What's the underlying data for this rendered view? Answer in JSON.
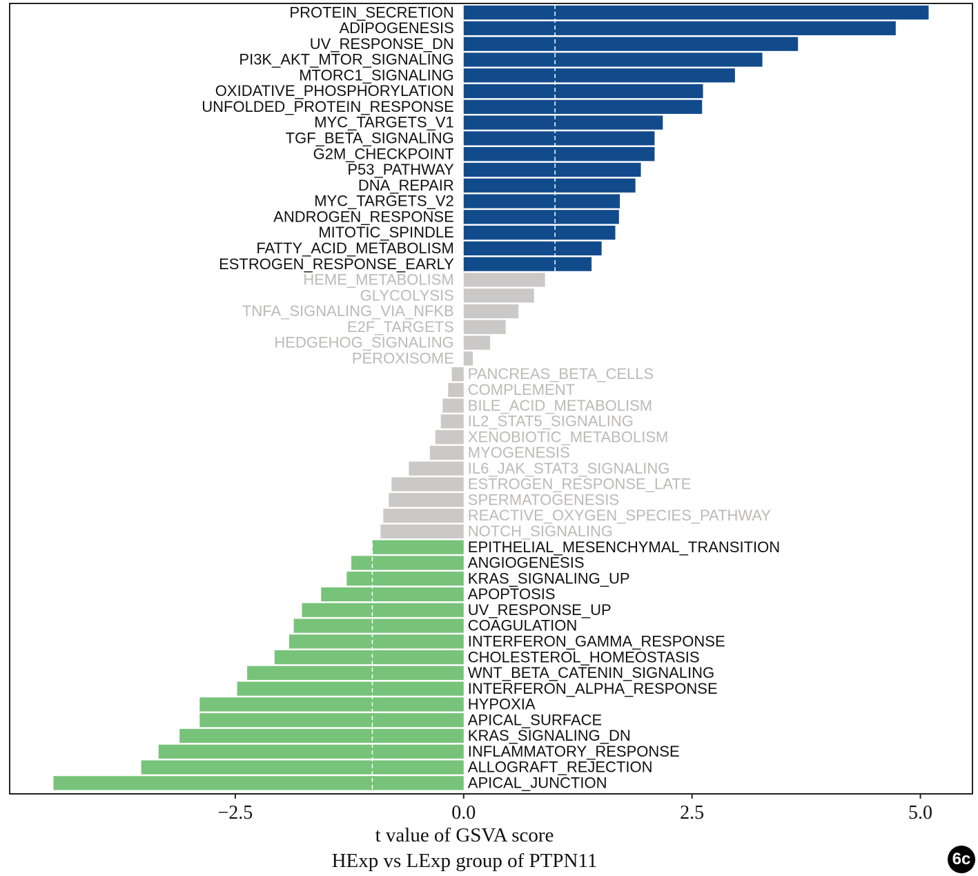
{
  "chart_data": {
    "type": "bar",
    "orientation": "horizontal",
    "xlabel": "t value of GSVA score",
    "subtitle": "HExp vs LExp group of PTPN11",
    "xlim": [
      -4.97,
      5.57
    ],
    "xticks": [
      -2.5,
      0.0,
      2.5,
      5.0
    ],
    "xtick_labels": [
      "−2.5",
      "0.0",
      "2.5",
      "5.0"
    ],
    "threshold_lines": [
      -1.0,
      1.0
    ],
    "grid": false,
    "colors": {
      "up": "#124b8c",
      "down": "#77c37a",
      "ns": "#cbc8c8",
      "ns_text": "#bdb9b9",
      "sig_text": "#111111"
    },
    "categories": [
      "PROTEIN_SECRETION",
      "ADIPOGENESIS",
      "UV_RESPONSE_DN",
      "PI3K_AKT_MTOR_SIGNALING",
      "MTORC1_SIGNALING",
      "OXIDATIVE_PHOSPHORYLATION",
      "UNFOLDED_PROTEIN_RESPONSE",
      "MYC_TARGETS_V1",
      "TGF_BETA_SIGNALING",
      "G2M_CHECKPOINT",
      "P53_PATHWAY",
      "DNA_REPAIR",
      "MYC_TARGETS_V2",
      "ANDROGEN_RESPONSE",
      "MITOTIC_SPINDLE",
      "FATTY_ACID_METABOLISM",
      "ESTROGEN_RESPONSE_EARLY",
      "HEME_METABOLISM",
      "GLYCOLYSIS",
      "TNFA_SIGNALING_VIA_NFKB",
      "E2F_TARGETS",
      "HEDGEHOG_SIGNALING",
      "PEROXISOME",
      "PANCREAS_BETA_CELLS",
      "COMPLEMENT",
      "BILE_ACID_METABOLISM",
      "IL2_STAT5_SIGNALING",
      "XENOBIOTIC_METABOLISM",
      "MYOGENESIS",
      "IL6_JAK_STAT3_SIGNALING",
      "ESTROGEN_RESPONSE_LATE",
      "SPERMATOGENESIS",
      "REACTIVE_OXYGEN_SPECIES_PATHWAY",
      "NOTCH_SIGNALING",
      "EPITHELIAL_MESENCHYMAL_TRANSITION",
      "ANGIOGENESIS",
      "KRAS_SIGNALING_UP",
      "APOPTOSIS",
      "UV_RESPONSE_UP",
      "COAGULATION",
      "INTERFERON_GAMMA_RESPONSE",
      "CHOLESTEROL_HOMEOSTASIS",
      "WNT_BETA_CATENIN_SIGNALING",
      "INTERFERON_ALPHA_RESPONSE",
      "HYPOXIA",
      "APICAL_SURFACE",
      "KRAS_SIGNALING_DN",
      "INFLAMMATORY_RESPONSE",
      "ALLOGRAFT_REJECTION",
      "APICAL_JUNCTION"
    ],
    "values": [
      5.09,
      4.73,
      3.66,
      3.27,
      2.97,
      2.62,
      2.61,
      2.18,
      2.09,
      2.09,
      1.94,
      1.88,
      1.71,
      1.7,
      1.66,
      1.51,
      1.4,
      0.89,
      0.77,
      0.6,
      0.46,
      0.29,
      0.1,
      -0.13,
      -0.17,
      -0.23,
      -0.25,
      -0.31,
      -0.37,
      -0.6,
      -0.79,
      -0.82,
      -0.88,
      -0.91,
      -1.0,
      -1.23,
      -1.28,
      -1.56,
      -1.77,
      -1.86,
      -1.91,
      -2.07,
      -2.37,
      -2.48,
      -2.89,
      -2.89,
      -3.11,
      -3.34,
      -3.53,
      -4.49
    ],
    "groups": [
      "up",
      "up",
      "up",
      "up",
      "up",
      "up",
      "up",
      "up",
      "up",
      "up",
      "up",
      "up",
      "up",
      "up",
      "up",
      "up",
      "up",
      "ns",
      "ns",
      "ns",
      "ns",
      "ns",
      "ns",
      "ns",
      "ns",
      "ns",
      "ns",
      "ns",
      "ns",
      "ns",
      "ns",
      "ns",
      "ns",
      "ns",
      "down",
      "down",
      "down",
      "down",
      "down",
      "down",
      "down",
      "down",
      "down",
      "down",
      "down",
      "down",
      "down",
      "down",
      "down",
      "down"
    ]
  },
  "figure_badge": "6c"
}
